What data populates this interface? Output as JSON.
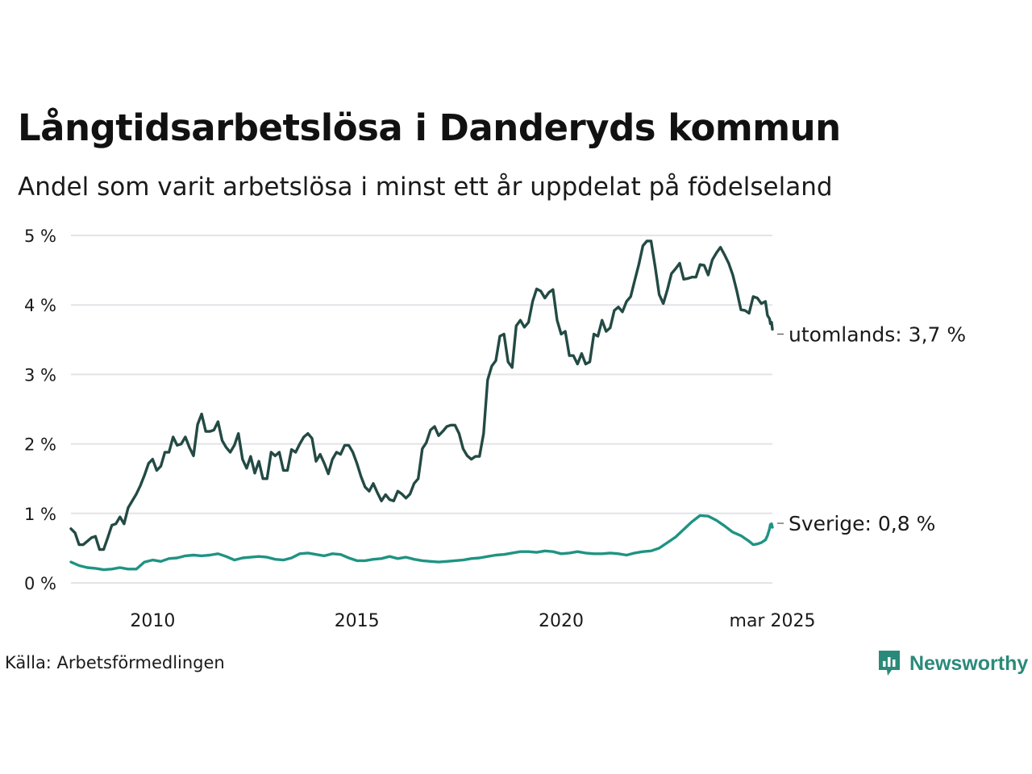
{
  "title": "Långtidsarbetslösa i Danderyds kommun",
  "subtitle": "Andel som varit arbetslösa i minst ett år uppdelat på födelseland",
  "source": "Källa: Arbetsförmedlingen",
  "brand": "Newsworthy",
  "colors": {
    "utomlands": "#234a44",
    "sverige": "#1f9383",
    "brand": "#2a8a7a",
    "grid": "#e3e3e8"
  },
  "chart_data": {
    "type": "line",
    "title": "Långtidsarbetslösa i Danderyds kommun",
    "subtitle": "Andel som varit arbetslösa i minst ett år uppdelat på födelseland",
    "unit": "%",
    "x_start": "2008-01",
    "x_end": "2025-03",
    "x_ticks": [
      {
        "label": "2010",
        "date": 2010.0
      },
      {
        "label": "2015",
        "date": 2015.0
      },
      {
        "label": "2020",
        "date": 2020.0
      },
      {
        "label": "mar 2025",
        "date": 2025.17
      }
    ],
    "ylim": [
      0,
      5
    ],
    "y_ticks": [
      {
        "value": 0,
        "label": "0 %"
      },
      {
        "value": 1,
        "label": "1 %"
      },
      {
        "value": 2,
        "label": "2 %"
      },
      {
        "value": 3,
        "label": "3 %"
      },
      {
        "value": 4,
        "label": "4 %"
      },
      {
        "value": 5,
        "label": "5 %"
      }
    ],
    "grid": true,
    "series": [
      {
        "key": "utomlands",
        "end_label": "utomlands: 3,7 %",
        "points": [
          [
            2008.0,
            0.78
          ],
          [
            2008.1,
            0.72
          ],
          [
            2008.2,
            0.55
          ],
          [
            2008.3,
            0.55
          ],
          [
            2008.4,
            0.6
          ],
          [
            2008.5,
            0.65
          ],
          [
            2008.6,
            0.67
          ],
          [
            2008.7,
            0.48
          ],
          [
            2008.8,
            0.48
          ],
          [
            2008.9,
            0.65
          ],
          [
            2009.0,
            0.83
          ],
          [
            2009.1,
            0.85
          ],
          [
            2009.2,
            0.95
          ],
          [
            2009.3,
            0.85
          ],
          [
            2009.4,
            1.08
          ],
          [
            2009.5,
            1.18
          ],
          [
            2009.6,
            1.28
          ],
          [
            2009.7,
            1.4
          ],
          [
            2009.8,
            1.55
          ],
          [
            2009.9,
            1.72
          ],
          [
            2010.0,
            1.78
          ],
          [
            2010.1,
            1.62
          ],
          [
            2010.2,
            1.68
          ],
          [
            2010.3,
            1.88
          ],
          [
            2010.4,
            1.88
          ],
          [
            2010.5,
            2.1
          ],
          [
            2010.6,
            1.98
          ],
          [
            2010.7,
            2.0
          ],
          [
            2010.8,
            2.1
          ],
          [
            2010.9,
            1.95
          ],
          [
            2011.0,
            1.83
          ],
          [
            2011.1,
            2.28
          ],
          [
            2011.2,
            2.43
          ],
          [
            2011.3,
            2.18
          ],
          [
            2011.4,
            2.18
          ],
          [
            2011.5,
            2.2
          ],
          [
            2011.6,
            2.32
          ],
          [
            2011.7,
            2.05
          ],
          [
            2011.8,
            1.95
          ],
          [
            2011.9,
            1.88
          ],
          [
            2012.0,
            1.98
          ],
          [
            2012.1,
            2.15
          ],
          [
            2012.2,
            1.78
          ],
          [
            2012.3,
            1.65
          ],
          [
            2012.4,
            1.82
          ],
          [
            2012.5,
            1.58
          ],
          [
            2012.6,
            1.75
          ],
          [
            2012.7,
            1.5
          ],
          [
            2012.8,
            1.5
          ],
          [
            2012.9,
            1.88
          ],
          [
            2013.0,
            1.83
          ],
          [
            2013.1,
            1.88
          ],
          [
            2013.2,
            1.62
          ],
          [
            2013.3,
            1.62
          ],
          [
            2013.4,
            1.92
          ],
          [
            2013.5,
            1.88
          ],
          [
            2013.6,
            2.0
          ],
          [
            2013.7,
            2.1
          ],
          [
            2013.8,
            2.15
          ],
          [
            2013.9,
            2.08
          ],
          [
            2014.0,
            1.75
          ],
          [
            2014.1,
            1.85
          ],
          [
            2014.2,
            1.72
          ],
          [
            2014.3,
            1.57
          ],
          [
            2014.4,
            1.78
          ],
          [
            2014.5,
            1.88
          ],
          [
            2014.6,
            1.85
          ],
          [
            2014.7,
            1.98
          ],
          [
            2014.8,
            1.98
          ],
          [
            2014.9,
            1.88
          ],
          [
            2015.0,
            1.72
          ],
          [
            2015.1,
            1.53
          ],
          [
            2015.2,
            1.38
          ],
          [
            2015.3,
            1.32
          ],
          [
            2015.4,
            1.43
          ],
          [
            2015.5,
            1.3
          ],
          [
            2015.6,
            1.18
          ],
          [
            2015.7,
            1.27
          ],
          [
            2015.8,
            1.2
          ],
          [
            2015.9,
            1.18
          ],
          [
            2016.0,
            1.32
          ],
          [
            2016.1,
            1.28
          ],
          [
            2016.2,
            1.22
          ],
          [
            2016.3,
            1.28
          ],
          [
            2016.4,
            1.43
          ],
          [
            2016.5,
            1.5
          ],
          [
            2016.6,
            1.93
          ],
          [
            2016.7,
            2.02
          ],
          [
            2016.8,
            2.2
          ],
          [
            2016.9,
            2.25
          ],
          [
            2017.0,
            2.12
          ],
          [
            2017.1,
            2.18
          ],
          [
            2017.2,
            2.25
          ],
          [
            2017.3,
            2.27
          ],
          [
            2017.4,
            2.27
          ],
          [
            2017.5,
            2.15
          ],
          [
            2017.6,
            1.93
          ],
          [
            2017.7,
            1.83
          ],
          [
            2017.8,
            1.78
          ],
          [
            2017.9,
            1.82
          ],
          [
            2018.0,
            1.82
          ],
          [
            2018.1,
            2.15
          ],
          [
            2018.2,
            2.92
          ],
          [
            2018.3,
            3.12
          ],
          [
            2018.4,
            3.2
          ],
          [
            2018.5,
            3.55
          ],
          [
            2018.6,
            3.58
          ],
          [
            2018.7,
            3.18
          ],
          [
            2018.8,
            3.1
          ],
          [
            2018.9,
            3.7
          ],
          [
            2019.0,
            3.78
          ],
          [
            2019.1,
            3.68
          ],
          [
            2019.2,
            3.75
          ],
          [
            2019.3,
            4.05
          ],
          [
            2019.4,
            4.23
          ],
          [
            2019.5,
            4.2
          ],
          [
            2019.6,
            4.1
          ],
          [
            2019.7,
            4.18
          ],
          [
            2019.8,
            4.22
          ],
          [
            2019.9,
            3.78
          ],
          [
            2020.0,
            3.58
          ],
          [
            2020.1,
            3.62
          ],
          [
            2020.2,
            3.27
          ],
          [
            2020.3,
            3.27
          ],
          [
            2020.4,
            3.15
          ],
          [
            2020.5,
            3.3
          ],
          [
            2020.6,
            3.15
          ],
          [
            2020.7,
            3.18
          ],
          [
            2020.8,
            3.58
          ],
          [
            2020.9,
            3.55
          ],
          [
            2021.0,
            3.78
          ],
          [
            2021.1,
            3.62
          ],
          [
            2021.2,
            3.67
          ],
          [
            2021.3,
            3.92
          ],
          [
            2021.4,
            3.97
          ],
          [
            2021.5,
            3.9
          ],
          [
            2021.6,
            4.05
          ],
          [
            2021.7,
            4.12
          ],
          [
            2021.8,
            4.35
          ],
          [
            2021.9,
            4.58
          ],
          [
            2022.0,
            4.85
          ],
          [
            2022.1,
            4.92
          ],
          [
            2022.2,
            4.92
          ],
          [
            2022.3,
            4.55
          ],
          [
            2022.4,
            4.15
          ],
          [
            2022.5,
            4.02
          ],
          [
            2022.6,
            4.22
          ],
          [
            2022.7,
            4.45
          ],
          [
            2022.8,
            4.52
          ],
          [
            2022.9,
            4.6
          ],
          [
            2023.0,
            4.37
          ],
          [
            2023.1,
            4.38
          ],
          [
            2023.2,
            4.4
          ],
          [
            2023.3,
            4.4
          ],
          [
            2023.4,
            4.58
          ],
          [
            2023.5,
            4.57
          ],
          [
            2023.6,
            4.43
          ],
          [
            2023.7,
            4.65
          ],
          [
            2023.8,
            4.75
          ],
          [
            2023.9,
            4.83
          ],
          [
            2024.0,
            4.72
          ],
          [
            2024.1,
            4.6
          ],
          [
            2024.2,
            4.43
          ],
          [
            2024.3,
            4.2
          ],
          [
            2024.4,
            3.93
          ],
          [
            2024.5,
            3.92
          ],
          [
            2024.6,
            3.88
          ],
          [
            2024.7,
            4.12
          ],
          [
            2024.8,
            4.1
          ],
          [
            2024.9,
            4.02
          ],
          [
            2025.0,
            4.05
          ],
          [
            2025.05,
            3.85
          ],
          [
            2025.1,
            3.8
          ],
          [
            2025.12,
            3.73
          ],
          [
            2025.15,
            3.75
          ],
          [
            2025.17,
            3.65
          ]
        ]
      },
      {
        "key": "sverige",
        "end_label": "Sverige: 0,8 %",
        "points": [
          [
            2008.0,
            0.3
          ],
          [
            2008.2,
            0.25
          ],
          [
            2008.4,
            0.22
          ],
          [
            2008.6,
            0.21
          ],
          [
            2008.8,
            0.19
          ],
          [
            2009.0,
            0.2
          ],
          [
            2009.2,
            0.22
          ],
          [
            2009.4,
            0.2
          ],
          [
            2009.6,
            0.2
          ],
          [
            2009.8,
            0.3
          ],
          [
            2010.0,
            0.33
          ],
          [
            2010.2,
            0.31
          ],
          [
            2010.4,
            0.35
          ],
          [
            2010.6,
            0.36
          ],
          [
            2010.8,
            0.39
          ],
          [
            2011.0,
            0.4
          ],
          [
            2011.2,
            0.39
          ],
          [
            2011.4,
            0.4
          ],
          [
            2011.6,
            0.42
          ],
          [
            2011.8,
            0.38
          ],
          [
            2012.0,
            0.33
          ],
          [
            2012.2,
            0.36
          ],
          [
            2012.4,
            0.37
          ],
          [
            2012.6,
            0.38
          ],
          [
            2012.8,
            0.37
          ],
          [
            2013.0,
            0.34
          ],
          [
            2013.2,
            0.33
          ],
          [
            2013.4,
            0.36
          ],
          [
            2013.6,
            0.42
          ],
          [
            2013.8,
            0.43
          ],
          [
            2014.0,
            0.41
          ],
          [
            2014.2,
            0.39
          ],
          [
            2014.4,
            0.42
          ],
          [
            2014.6,
            0.41
          ],
          [
            2014.8,
            0.36
          ],
          [
            2015.0,
            0.32
          ],
          [
            2015.2,
            0.32
          ],
          [
            2015.4,
            0.34
          ],
          [
            2015.6,
            0.35
          ],
          [
            2015.8,
            0.38
          ],
          [
            2016.0,
            0.35
          ],
          [
            2016.2,
            0.37
          ],
          [
            2016.4,
            0.34
          ],
          [
            2016.6,
            0.32
          ],
          [
            2016.8,
            0.31
          ],
          [
            2017.0,
            0.3
          ],
          [
            2017.2,
            0.31
          ],
          [
            2017.4,
            0.32
          ],
          [
            2017.6,
            0.33
          ],
          [
            2017.8,
            0.35
          ],
          [
            2018.0,
            0.36
          ],
          [
            2018.2,
            0.38
          ],
          [
            2018.4,
            0.4
          ],
          [
            2018.6,
            0.41
          ],
          [
            2018.8,
            0.43
          ],
          [
            2019.0,
            0.45
          ],
          [
            2019.2,
            0.45
          ],
          [
            2019.4,
            0.44
          ],
          [
            2019.6,
            0.46
          ],
          [
            2019.8,
            0.45
          ],
          [
            2020.0,
            0.42
          ],
          [
            2020.2,
            0.43
          ],
          [
            2020.4,
            0.45
          ],
          [
            2020.6,
            0.43
          ],
          [
            2020.8,
            0.42
          ],
          [
            2021.0,
            0.42
          ],
          [
            2021.2,
            0.43
          ],
          [
            2021.4,
            0.42
          ],
          [
            2021.6,
            0.4
          ],
          [
            2021.8,
            0.43
          ],
          [
            2022.0,
            0.45
          ],
          [
            2022.2,
            0.46
          ],
          [
            2022.4,
            0.5
          ],
          [
            2022.6,
            0.58
          ],
          [
            2022.8,
            0.66
          ],
          [
            2023.0,
            0.77
          ],
          [
            2023.2,
            0.88
          ],
          [
            2023.4,
            0.97
          ],
          [
            2023.6,
            0.96
          ],
          [
            2023.8,
            0.9
          ],
          [
            2024.0,
            0.82
          ],
          [
            2024.2,
            0.73
          ],
          [
            2024.4,
            0.68
          ],
          [
            2024.6,
            0.6
          ],
          [
            2024.7,
            0.55
          ],
          [
            2024.8,
            0.56
          ],
          [
            2024.9,
            0.58
          ],
          [
            2025.0,
            0.62
          ],
          [
            2025.05,
            0.68
          ],
          [
            2025.1,
            0.78
          ],
          [
            2025.12,
            0.84
          ],
          [
            2025.15,
            0.85
          ],
          [
            2025.17,
            0.8
          ]
        ]
      }
    ]
  }
}
